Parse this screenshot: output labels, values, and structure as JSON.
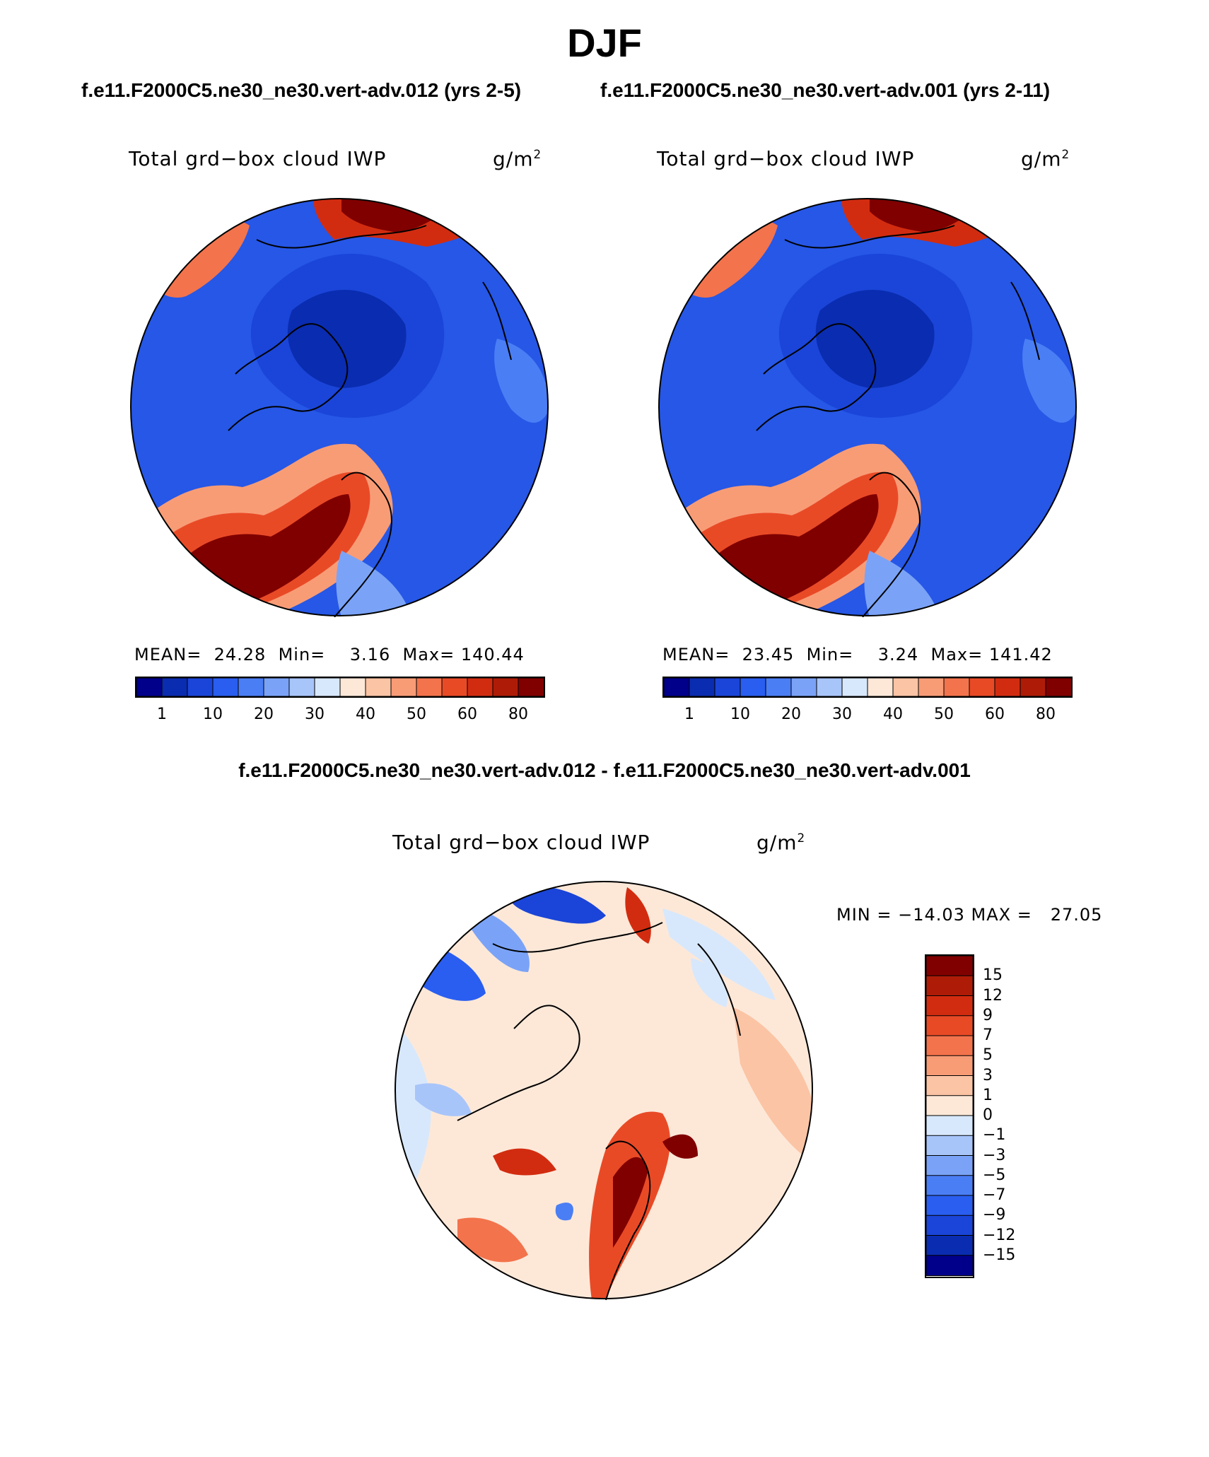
{
  "title": "DJF",
  "panels": [
    {
      "case_title": "f.e11.F2000C5.ne30_ne30.vert-adv.012 (yrs 2-5)",
      "variable": "Total grd−box cloud IWP",
      "units_base": "g/m",
      "units_exp": "2",
      "stats": "MEAN=  24.28  Min=    3.16  Max= 140.44"
    },
    {
      "case_title": "f.e11.F2000C5.ne30_ne30.vert-adv.001 (yrs 2-11)",
      "variable": "Total grd−box cloud IWP",
      "units_base": "g/m",
      "units_exp": "2",
      "stats": "MEAN=  23.45  Min=    3.24  Max= 141.42"
    }
  ],
  "diff": {
    "title": "f.e11.F2000C5.ne30_ne30.vert-adv.012 - f.e11.F2000C5.ne30_ne30.vert-adv.001",
    "variable": "Total grd−box cloud IWP",
    "units_base": "g/m",
    "units_exp": "2",
    "minmax": "MIN = −14.03 MAX =   27.05"
  },
  "chart_data": [
    {
      "type": "heatmap",
      "projection": "north polar stereographic",
      "title": "Total grd-box cloud IWP",
      "units": "g/m2",
      "case": "f.e11.F2000C5.ne30_ne30.vert-adv.012 (yrs 2-5)",
      "season": "DJF",
      "mean": 24.28,
      "min": 3.16,
      "max": 140.44,
      "colorbar_ticks": [
        1,
        10,
        20,
        30,
        40,
        50,
        60,
        80
      ],
      "colors": [
        "#00008b",
        "#0a2cb0",
        "#1a45d8",
        "#2a5ef0",
        "#4a7ef5",
        "#7aa3f7",
        "#a8c5fa",
        "#d8e8fc",
        "#fde8d8",
        "#fbc4a4",
        "#f89c76",
        "#f3734c",
        "#e94a26",
        "#d22c10",
        "#ae1c08",
        "#800000"
      ]
    },
    {
      "type": "heatmap",
      "projection": "north polar stereographic",
      "title": "Total grd-box cloud IWP",
      "units": "g/m2",
      "case": "f.e11.F2000C5.ne30_ne30.vert-adv.001 (yrs 2-11)",
      "season": "DJF",
      "mean": 23.45,
      "min": 3.24,
      "max": 141.42,
      "colorbar_ticks": [
        1,
        10,
        20,
        30,
        40,
        50,
        60,
        80
      ],
      "colors": [
        "#00008b",
        "#0a2cb0",
        "#1a45d8",
        "#2a5ef0",
        "#4a7ef5",
        "#7aa3f7",
        "#a8c5fa",
        "#d8e8fc",
        "#fde8d8",
        "#fbc4a4",
        "#f89c76",
        "#f3734c",
        "#e94a26",
        "#d22c10",
        "#ae1c08",
        "#800000"
      ]
    },
    {
      "type": "heatmap",
      "projection": "north polar stereographic",
      "title": "Total grd-box cloud IWP",
      "units": "g/m2",
      "case": "f.e11.F2000C5.ne30_ne30.vert-adv.012 - f.e11.F2000C5.ne30_ne30.vert-adv.001",
      "season": "DJF",
      "min": -14.03,
      "max": 27.05,
      "colorbar_ticks": [
        "15",
        "12",
        "9",
        "7",
        "5",
        "3",
        "1",
        "0",
        "−1",
        "−3",
        "−5",
        "−7",
        "−9",
        "−12",
        "−15"
      ],
      "colors": [
        "#800000",
        "#ae1c08",
        "#d22c10",
        "#e94a26",
        "#f3734c",
        "#f89c76",
        "#fbc4a4",
        "#fde8d8",
        "#d8e8fc",
        "#a8c5fa",
        "#7aa3f7",
        "#4a7ef5",
        "#2a5ef0",
        "#1a45d8",
        "#0a2cb0",
        "#00008b"
      ]
    }
  ]
}
